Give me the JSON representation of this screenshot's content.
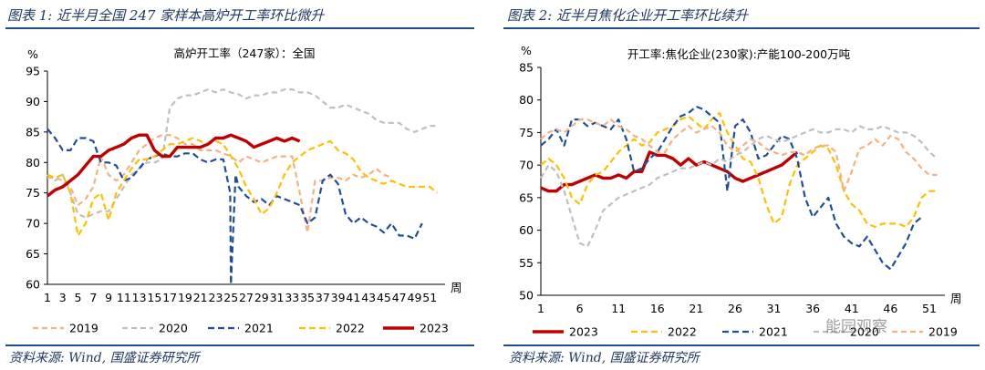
{
  "panels": {
    "left_title": "图表 1:  近半月全国 247 家样本高炉开工率环比微升",
    "right_title": "图表 2:  近半月焦化企业开工率环比续升",
    "source_left": "资料来源:  Wind, 国盛证券研究所",
    "source_right": "资料来源:  Wind, 国盛证券研究所"
  },
  "watermark": "能园观察",
  "chart_data": [
    {
      "type": "line",
      "title": "高炉开工率（247家）：全国",
      "ylabel": "%",
      "xlabel": "周",
      "ylim": [
        60,
        95
      ],
      "xlim": [
        1,
        53
      ],
      "yticks": [
        60,
        65,
        70,
        75,
        80,
        85,
        90,
        95
      ],
      "xticks": [
        1,
        3,
        5,
        7,
        9,
        11,
        13,
        15,
        17,
        19,
        21,
        23,
        25,
        27,
        29,
        31,
        33,
        35,
        37,
        39,
        41,
        43,
        45,
        47,
        49,
        51
      ],
      "legend_position": "bottom",
      "series": [
        {
          "name": "2019",
          "color": "#f4b183",
          "dash": "6,4",
          "width": 2.2,
          "x": [
            1,
            2,
            3,
            4,
            5,
            6,
            7,
            8,
            9,
            10,
            11,
            12,
            13,
            14,
            15,
            16,
            17,
            18,
            19,
            20,
            21,
            22,
            23,
            24,
            25,
            26,
            27,
            28,
            29,
            30,
            31,
            32,
            33,
            34,
            35,
            36,
            37,
            38,
            39,
            40,
            41,
            42,
            43,
            44,
            45,
            46
          ],
          "values": [
            77.5,
            77.5,
            77,
            76,
            73,
            74,
            76,
            81,
            78,
            77,
            78,
            80,
            82,
            83,
            84,
            84.5,
            84.5,
            84,
            83,
            83,
            82,
            82,
            82,
            81.5,
            81,
            80,
            81,
            80.5,
            80,
            80.5,
            81,
            81,
            81,
            75,
            68.5,
            77,
            77,
            77.5,
            77.5,
            77,
            78,
            77.5,
            78,
            79,
            78,
            77.5
          ]
        },
        {
          "name": "2020",
          "color": "#bfbfbf",
          "dash": "6,4",
          "width": 2.2,
          "x": [
            1,
            2,
            3,
            4,
            5,
            6,
            7,
            8,
            9,
            10,
            11,
            12,
            13,
            14,
            15,
            16,
            17,
            18,
            19,
            20,
            21,
            22,
            23,
            24,
            25,
            26,
            27,
            28,
            29,
            30,
            31,
            32,
            33,
            34,
            35,
            36,
            37,
            38,
            39,
            40,
            41,
            42,
            43,
            44,
            45,
            46,
            47,
            48,
            49,
            50,
            51,
            52
          ],
          "values": [
            78,
            77,
            78,
            75,
            71.5,
            71,
            71.5,
            72,
            72,
            74,
            76,
            78,
            79,
            80,
            80,
            80.5,
            89,
            90.5,
            91,
            91,
            91.5,
            92,
            91.5,
            92,
            91.5,
            91.2,
            90.5,
            91,
            91,
            91.5,
            91.5,
            92,
            92,
            91.5,
            91.5,
            91,
            90,
            89,
            89,
            89.5,
            89,
            88.5,
            88,
            87,
            86.5,
            86.5,
            86.5,
            85.5,
            85,
            85.5,
            86,
            86
          ]
        },
        {
          "name": "2021",
          "color": "#1f4e9c",
          "dash": "7,4",
          "width": 2.2,
          "x": [
            1,
            2,
            3,
            4,
            5,
            6,
            7,
            8,
            9,
            10,
            11,
            12,
            13,
            14,
            15,
            16,
            17,
            18,
            19,
            20,
            21,
            22,
            23,
            24,
            24.9,
            25,
            25.6,
            26,
            27,
            28,
            29,
            30,
            31,
            32,
            33,
            34,
            35,
            36,
            37,
            38,
            39,
            40,
            41,
            42,
            43,
            44,
            45,
            46,
            47,
            48,
            49,
            50
          ],
          "values": [
            85.5,
            84,
            82,
            82,
            84,
            84,
            83.5,
            80,
            80,
            79.5,
            77,
            77.5,
            79,
            80.5,
            81,
            81.5,
            81,
            81,
            81.5,
            81.5,
            80.5,
            80,
            80.5,
            80.5,
            75,
            60,
            78,
            76,
            74.5,
            73.5,
            74,
            73,
            74.5,
            74,
            73.5,
            73,
            70,
            71,
            77,
            78,
            76.5,
            71.5,
            70,
            71,
            70,
            69.5,
            68.5,
            70,
            68,
            68,
            67.5,
            70
          ]
        },
        {
          "name": "2022",
          "color": "#ffc000",
          "dash": "7,4",
          "width": 2.2,
          "x": [
            1,
            2,
            3,
            4,
            5,
            6,
            7,
            8,
            9,
            10,
            11,
            12,
            13,
            14,
            15,
            16,
            17,
            18,
            19,
            20,
            21,
            22,
            23,
            24,
            25,
            26,
            27,
            28,
            29,
            30,
            31,
            32,
            33,
            34,
            35,
            36,
            37,
            38,
            39,
            40,
            41,
            42,
            43,
            44,
            45,
            46,
            47,
            48,
            49,
            50,
            51,
            52
          ],
          "values": [
            78,
            77.5,
            78,
            75,
            68,
            70,
            74,
            75,
            70.5,
            75,
            77,
            79,
            80.5,
            80.5,
            81,
            82,
            83,
            83,
            83.5,
            84,
            83.5,
            83,
            83.5,
            83,
            81,
            79,
            76,
            74,
            71.5,
            72.5,
            75,
            78,
            80,
            81,
            82,
            82.5,
            83,
            83.5,
            82,
            81.5,
            80.5,
            78.5,
            77.5,
            77,
            76.5,
            77,
            76.5,
            76,
            76,
            76,
            76,
            75
          ]
        },
        {
          "name": "2023",
          "color": "#c00000",
          "dash": "",
          "width": 3.4,
          "x": [
            1,
            2,
            3,
            4,
            5,
            6,
            7,
            8,
            9,
            10,
            11,
            12,
            13,
            14,
            15,
            16,
            17,
            18,
            19,
            20,
            21,
            22,
            23,
            24,
            25,
            26,
            27,
            28,
            29,
            30,
            31,
            32,
            33,
            34
          ],
          "values": [
            74.5,
            75.5,
            76,
            77,
            78,
            79.5,
            81,
            81,
            82,
            82.5,
            83,
            84,
            84.5,
            84.5,
            82,
            81,
            81,
            82.5,
            82.5,
            82.5,
            82.5,
            83,
            84,
            84,
            84.5,
            84,
            83.5,
            82.5,
            83,
            83.5,
            84,
            83.5,
            84,
            83.5
          ]
        }
      ]
    },
    {
      "type": "line",
      "title": "开工率:焦化企业(230家):产能100-200万吨",
      "ylabel": "%",
      "xlabel": "周",
      "ylim": [
        50,
        85
      ],
      "xlim": [
        1,
        53
      ],
      "yticks": [
        50,
        55,
        60,
        65,
        70,
        75,
        80,
        85
      ],
      "xticks": [
        1,
        6,
        11,
        16,
        21,
        26,
        31,
        36,
        41,
        46,
        51
      ],
      "legend_position": "bottom",
      "series": [
        {
          "name": "2023",
          "color": "#c00000",
          "dash": "",
          "width": 3.4,
          "x": [
            1,
            2,
            3,
            4,
            5,
            6,
            7,
            8,
            9,
            10,
            11,
            12,
            13,
            14,
            15,
            16,
            17,
            18,
            19,
            20,
            21,
            22,
            23,
            24,
            25,
            26,
            27,
            28,
            29,
            30,
            31,
            32,
            33,
            34
          ],
          "values": [
            66.5,
            66,
            66,
            67,
            67,
            67.5,
            68,
            68.5,
            68,
            68,
            68.5,
            68,
            69,
            69,
            72,
            71.5,
            71.5,
            71,
            70,
            71,
            70,
            70.5,
            70,
            69.5,
            69,
            68,
            67.5,
            68,
            68.5,
            69,
            69.5,
            70,
            71,
            72
          ]
        },
        {
          "name": "2022",
          "color": "#ffc000",
          "dash": "7,4",
          "width": 2.2,
          "x": [
            1,
            2,
            3,
            4,
            5,
            6,
            7,
            8,
            9,
            10,
            11,
            12,
            13,
            14,
            15,
            16,
            17,
            18,
            19,
            20,
            21,
            22,
            23,
            24,
            25,
            26,
            27,
            28,
            29,
            30,
            31,
            32,
            33,
            34,
            35,
            36,
            37,
            38,
            39,
            40,
            41,
            42,
            43,
            44,
            45,
            46,
            47,
            48,
            49,
            50,
            51,
            52
          ],
          "values": [
            70,
            71,
            70,
            68,
            65,
            64,
            67,
            68.5,
            69,
            70.5,
            72,
            73,
            74,
            73,
            73.5,
            75,
            75.5,
            76,
            77,
            77.5,
            76.5,
            75.5,
            77,
            78,
            75,
            73,
            71,
            70.5,
            68,
            64,
            61,
            62,
            67,
            70,
            71,
            72,
            73,
            72.5,
            70,
            66,
            64,
            63,
            61,
            60.5,
            61,
            61,
            61,
            60.5,
            62,
            65,
            66,
            66
          ]
        },
        {
          "name": "2021",
          "color": "#1f4e9c",
          "dash": "7,4",
          "width": 2.2,
          "x": [
            1,
            2,
            3,
            4,
            5,
            6,
            7,
            8,
            9,
            10,
            11,
            12,
            13,
            14,
            15,
            16,
            17,
            18,
            19,
            20,
            21,
            22,
            23,
            24,
            25,
            26,
            27,
            28,
            29,
            30,
            31,
            32,
            33,
            34,
            35,
            36,
            37,
            38,
            39,
            40,
            41,
            42,
            43,
            44,
            45,
            46,
            47,
            48,
            49,
            50
          ],
          "values": [
            73,
            74,
            75.5,
            73,
            77,
            77,
            76,
            76.5,
            76,
            75.5,
            77,
            74,
            69,
            69.5,
            71,
            72,
            74,
            76,
            77.5,
            78,
            79,
            78.5,
            77.5,
            76.5,
            66,
            76,
            77,
            75,
            71,
            71.5,
            73,
            74.5,
            74,
            71,
            65,
            62,
            63.5,
            65,
            61,
            59,
            58,
            57.5,
            59,
            57,
            55,
            54,
            56,
            58,
            61,
            62
          ]
        },
        {
          "name": "2020",
          "color": "#bfbfbf",
          "dash": "6,4",
          "width": 2.2,
          "x": [
            1,
            2,
            3,
            4,
            5,
            6,
            7,
            8,
            9,
            10,
            11,
            12,
            13,
            14,
            15,
            16,
            17,
            18,
            19,
            20,
            21,
            22,
            23,
            24,
            25,
            26,
            27,
            28,
            29,
            30,
            31,
            32,
            33,
            34,
            35,
            36,
            37,
            38,
            39,
            40,
            41,
            42,
            43,
            44,
            45,
            46,
            47,
            48,
            49,
            50,
            51,
            52
          ],
          "values": [
            68,
            70,
            69,
            66,
            62,
            58,
            57.5,
            60,
            63,
            64,
            65,
            65.5,
            66,
            66.5,
            67,
            68,
            68.5,
            69,
            69.5,
            69.5,
            70,
            70.5,
            70,
            71,
            70.5,
            71.5,
            72,
            73,
            74,
            74.5,
            74,
            73.5,
            74,
            74.5,
            75,
            75.5,
            75,
            75,
            75.5,
            75.5,
            75,
            76,
            75.5,
            75.5,
            76,
            75.5,
            75,
            75,
            74.5,
            73.5,
            72,
            71
          ]
        },
        {
          "name": "2019",
          "color": "#f4b183",
          "dash": "6,4",
          "width": 2.2,
          "x": [
            1,
            2,
            3,
            4,
            5,
            6,
            7,
            8,
            9,
            10,
            11,
            12,
            13,
            14,
            15,
            16,
            17,
            18,
            19,
            20,
            21,
            22,
            23,
            24,
            25,
            26,
            27,
            28,
            29,
            30,
            31,
            32,
            33,
            34,
            35,
            36,
            37,
            38,
            39,
            40,
            41,
            42,
            43,
            44,
            45,
            46,
            47,
            48,
            49,
            50,
            51,
            52
          ],
          "values": [
            74,
            75,
            75.5,
            75,
            76,
            77,
            77,
            76.5,
            76,
            77,
            76,
            75.5,
            74.5,
            74,
            73,
            72,
            72,
            74,
            75,
            76,
            75,
            75.5,
            76,
            75,
            73,
            72,
            73,
            74,
            73.5,
            72.5,
            72,
            71.5,
            72,
            72,
            71.5,
            72.5,
            73,
            73,
            72,
            66,
            69,
            72.5,
            73,
            74,
            73,
            74.5,
            74,
            72,
            71,
            69.5,
            68.5,
            68.5
          ]
        }
      ]
    }
  ]
}
